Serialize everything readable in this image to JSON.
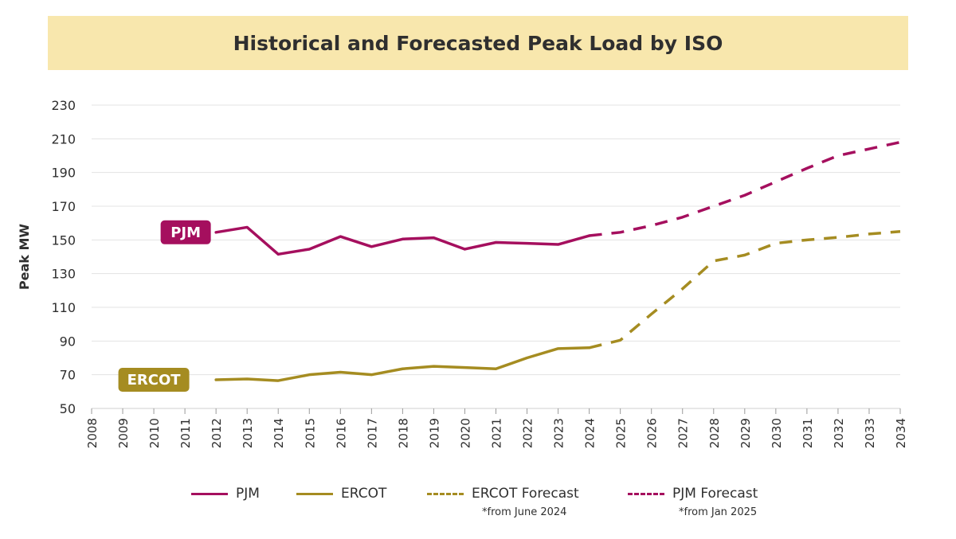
{
  "colors": {
    "pjm": "#a50f5e",
    "ercot": "#a58c21",
    "banner": "#f8e7ad",
    "grid": "#e3e3e3",
    "text": "#2f2f2f"
  },
  "chart_data": {
    "type": "line",
    "title": "Historical and Forecasted Peak Load by ISO",
    "ylabel": "Peak MW",
    "xlabel": "",
    "ylim": [
      50,
      230
    ],
    "yticks": [
      50,
      70,
      90,
      110,
      130,
      150,
      170,
      190,
      210,
      230
    ],
    "categories": [
      "2008",
      "2009",
      "2010",
      "2011",
      "2012",
      "2013",
      "2014",
      "2015",
      "2016",
      "2017",
      "2018",
      "2019",
      "2020",
      "2021",
      "2022",
      "2023",
      "2024",
      "2025",
      "2026",
      "2027",
      "2028",
      "2029",
      "2030",
      "2031",
      "2032",
      "2033",
      "2034"
    ],
    "grid": true,
    "series": [
      {
        "name": "PJM",
        "style": "solid",
        "color": "#a50f5e",
        "x": [
          "2012",
          "2013",
          "2014",
          "2015",
          "2016",
          "2017",
          "2018",
          "2019",
          "2020",
          "2021",
          "2022",
          "2023",
          "2024"
        ],
        "values": [
          154.5,
          157.5,
          141.5,
          144.5,
          152,
          146,
          150.5,
          151.3,
          144.5,
          148.5,
          148,
          147.3,
          152.5
        ]
      },
      {
        "name": "ERCOT",
        "style": "solid",
        "color": "#a58c21",
        "x": [
          "2012",
          "2013",
          "2014",
          "2015",
          "2016",
          "2017",
          "2018",
          "2019",
          "2020",
          "2021",
          "2022",
          "2023",
          "2024"
        ],
        "values": [
          67,
          67.5,
          66.5,
          70,
          71.5,
          70,
          73.5,
          75,
          74.3,
          73.5,
          80,
          85.5,
          86
        ]
      },
      {
        "name": "ERCOT Forecast",
        "style": "dashed",
        "color": "#a58c21",
        "note": "*from June 2024",
        "x": [
          "2024",
          "2025",
          "2026",
          "2027",
          "2028",
          "2029",
          "2030",
          "2031",
          "2032",
          "2033",
          "2034"
        ],
        "values": [
          86,
          90.5,
          106,
          121,
          137.5,
          141,
          148,
          150,
          151.5,
          153.5,
          155
        ]
      },
      {
        "name": "PJM Forecast",
        "style": "dashed",
        "color": "#a50f5e",
        "note": "*from Jan 2025",
        "x": [
          "2024",
          "2025",
          "2026",
          "2027",
          "2028",
          "2029",
          "2030",
          "2031",
          "2032",
          "2033",
          "2034"
        ],
        "values": [
          152.5,
          154.5,
          158.5,
          163.5,
          170,
          176.5,
          184.5,
          192.5,
          200,
          204,
          208
        ]
      }
    ],
    "annotations": [
      {
        "text": "PJM",
        "series": "PJM",
        "at": "2011"
      },
      {
        "text": "ERCOT",
        "series": "ERCOT",
        "at": "2010"
      }
    ],
    "legend": {
      "placement": "bottom",
      "items": [
        {
          "label": "PJM",
          "style": "solid",
          "color": "#a50f5e",
          "note": ""
        },
        {
          "label": "ERCOT",
          "style": "solid",
          "color": "#a58c21",
          "note": ""
        },
        {
          "label": "ERCOT Forecast",
          "style": "dashed",
          "color": "#a58c21",
          "note": "*from June 2024"
        },
        {
          "label": "PJM Forecast",
          "style": "dashed",
          "color": "#a50f5e",
          "note": "*from Jan 2025"
        }
      ]
    }
  }
}
